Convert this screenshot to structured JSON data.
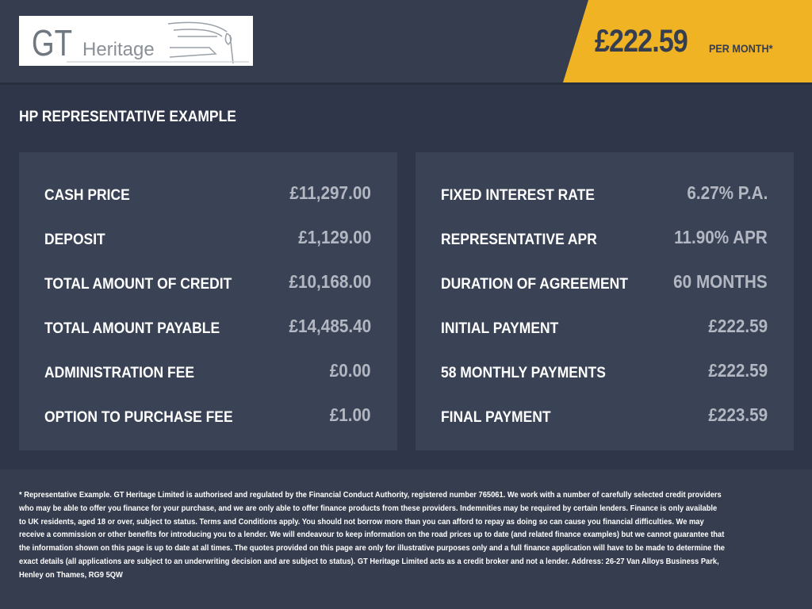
{
  "brand": {
    "logo_text_gt": "GT",
    "logo_text_heritage": "Heritage"
  },
  "headline": {
    "price": "£222.59",
    "per_month": "PER MONTH*",
    "accent_color": "#f0b323"
  },
  "title": "HP REPRESENTATIVE EXAMPLE",
  "left_rows": [
    {
      "label": "CASH PRICE",
      "value": "£11,297.00"
    },
    {
      "label": "DEPOSIT",
      "value": "£1,129.00"
    },
    {
      "label": "TOTAL AMOUNT OF CREDIT",
      "value": "£10,168.00"
    },
    {
      "label": "TOTAL AMOUNT PAYABLE",
      "value": "£14,485.40"
    },
    {
      "label": "ADMINISTRATION FEE",
      "value": "£0.00"
    },
    {
      "label": "OPTION TO PURCHASE FEE",
      "value": "£1.00"
    }
  ],
  "right_rows": [
    {
      "label": "FIXED INTEREST RATE",
      "value": "6.27% P.A."
    },
    {
      "label": "REPRESENTATIVE APR",
      "value": "11.90% APR"
    },
    {
      "label": "DURATION OF AGREEMENT",
      "value": "60 MONTHS"
    },
    {
      "label": "INITIAL PAYMENT",
      "value": "£222.59"
    },
    {
      "label": "58 MONTHLY PAYMENTS",
      "value": "£222.59"
    },
    {
      "label": "FINAL PAYMENT",
      "value": "£223.59"
    }
  ],
  "disclaimer": "* Representative Example. GT Heritage Limited is authorised and regulated by the Financial Conduct Authority, registered number 765061. We work with a number of carefully selected credit providers who may be able to offer you finance for your purchase, and we are only able to offer finance products from these providers. Indemnities may be required by certain lenders. Finance is only available to UK residents, aged 18 or over, subject to status. Terms and Conditions apply. You should not borrow more than you can afford to repay as doing so can cause you financial difficulties. We may receive a commission or other benefits for introducing you to a lender. We will endeavour to keep information on the road prices up to date (and related finance examples) but we cannot guarantee that the information shown on this page is up to date at all times. The quotes provided on this page are only for illustrative purposes only and a full finance application will have to be made to determine the exact details (all applications are subject to an underwriting decision and are subject to status). GT Heritage Limited acts as a credit broker and not a lender. Address: 26-27 Van Alloys Business Park, Henley on Thames, RG9 5QW"
}
